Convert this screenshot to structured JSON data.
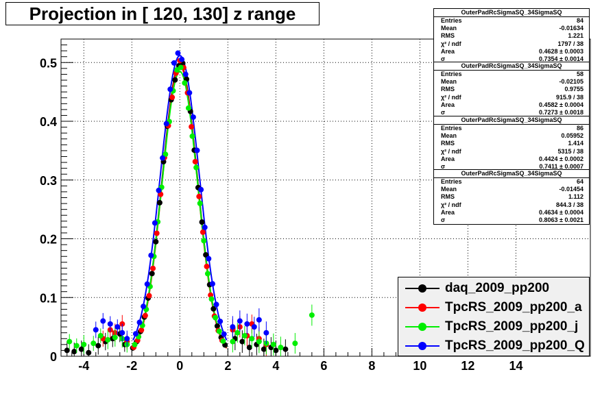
{
  "title": "Projection in [ 120, 130] z range",
  "stats": [
    {
      "name": "OuterPadRcSigmaSQ_34SigmaSQ",
      "rows": [
        {
          "k": "Entries",
          "v": "84"
        },
        {
          "k": "Mean",
          "v": "-0.01634"
        },
        {
          "k": "RMS",
          "v": "1.221"
        },
        {
          "k": "χ² / ndf",
          "v": "1797 / 38"
        },
        {
          "k": "Area",
          "v": "0.4628 ± 0.0003"
        },
        {
          "k": "σ",
          "v": "0.7354 ± 0.0014"
        }
      ]
    },
    {
      "name": "OuterPadRcSigmaSQ_34SigmaSQ",
      "rows": [
        {
          "k": "Entries",
          "v": "58"
        },
        {
          "k": "Mean",
          "v": "-0.02105"
        },
        {
          "k": "RMS",
          "v": "0.9755"
        },
        {
          "k": "χ² / ndf",
          "v": "915.9 / 38"
        },
        {
          "k": "Area",
          "v": "0.4582 ± 0.0004"
        },
        {
          "k": "σ",
          "v": "0.7273 ± 0.0018"
        }
      ]
    },
    {
      "name": "OuterPadRcSigmaSQ_34SigmaSQ",
      "rows": [
        {
          "k": "Entries",
          "v": "86"
        },
        {
          "k": "Mean",
          "v": "0.05952"
        },
        {
          "k": "RMS",
          "v": "1.414"
        },
        {
          "k": "χ² / ndf",
          "v": "5315 / 38"
        },
        {
          "k": "Area",
          "v": "0.4424 ± 0.0002"
        },
        {
          "k": "σ",
          "v": "0.7411 ± 0.0007"
        }
      ]
    },
    {
      "name": "OuterPadRcSigmaSQ_34SigmaSQ",
      "rows": [
        {
          "k": "Entries",
          "v": "64"
        },
        {
          "k": "Mean",
          "v": "-0.01454"
        },
        {
          "k": "RMS",
          "v": "1.112"
        },
        {
          "k": "χ² / ndf",
          "v": "844.3 / 38"
        },
        {
          "k": "Area",
          "v": "0.4634 ± 0.0004"
        },
        {
          "k": "σ",
          "v": "0.8063 ± 0.0021"
        }
      ]
    }
  ],
  "chart_data": {
    "type": "scatter",
    "xlim": [
      -4.95,
      17.1
    ],
    "ylim": [
      0,
      0.54
    ],
    "xticks": [
      -4,
      -2,
      0,
      2,
      4,
      6,
      8,
      10,
      12,
      14
    ],
    "yticks": [
      0,
      0.1,
      0.2,
      0.3,
      0.4,
      0.5
    ],
    "grid": true,
    "legend_position": "bottom-right",
    "series": [
      {
        "name": "daq_2009_pp200",
        "color": "#000000",
        "sigma": 0.7354,
        "peak": 0.498,
        "tail": [
          [
            -4.7,
            0.01
          ],
          [
            -4.4,
            0.008
          ],
          [
            -4.1,
            0.012
          ],
          [
            -3.8,
            0.006
          ],
          [
            -3.4,
            0.018
          ],
          [
            -3.1,
            0.025
          ],
          [
            -2.8,
            0.03
          ],
          [
            -2.5,
            0.038
          ],
          [
            -2.3,
            0.02
          ],
          [
            2.3,
            0.03
          ],
          [
            2.6,
            0.025
          ],
          [
            2.9,
            0.015
          ],
          [
            3.2,
            0.02
          ],
          [
            3.5,
            0.012
          ],
          [
            3.8,
            0.015
          ],
          [
            4.0,
            0.01
          ],
          [
            4.4,
            0.012
          ]
        ]
      },
      {
        "name": "TpcRS_2009_pp200_a",
        "color": "#ff0000",
        "sigma": 0.7273,
        "peak": 0.495,
        "tail": [
          [
            -3.2,
            0.03
          ],
          [
            -2.9,
            0.045
          ],
          [
            -2.7,
            0.04
          ],
          [
            -2.4,
            0.055
          ],
          [
            -2.2,
            0.025
          ],
          [
            2.2,
            0.045
          ],
          [
            2.5,
            0.05
          ],
          [
            2.8,
            0.035
          ],
          [
            3.0,
            0.055
          ],
          [
            3.3,
            0.03
          ],
          [
            3.6,
            0.02
          ]
        ]
      },
      {
        "name": "TpcRS_2009_pp200_j",
        "color": "#00ee00",
        "sigma": 0.7411,
        "peak": 0.485,
        "tail": [
          [
            -4.6,
            0.025
          ],
          [
            -4.3,
            0.018
          ],
          [
            -4.0,
            0.02
          ],
          [
            -3.6,
            0.022
          ],
          [
            -3.3,
            0.035
          ],
          [
            -3.0,
            0.028
          ],
          [
            -2.7,
            0.032
          ],
          [
            -2.4,
            0.03
          ],
          [
            -2.2,
            0.02
          ],
          [
            2.2,
            0.025
          ],
          [
            2.4,
            0.04
          ],
          [
            2.7,
            0.035
          ],
          [
            3.0,
            0.03
          ],
          [
            3.3,
            0.025
          ],
          [
            3.6,
            0.022
          ],
          [
            3.9,
            0.02
          ],
          [
            4.2,
            0.015
          ],
          [
            4.8,
            0.022
          ],
          [
            5.5,
            0.07
          ]
        ]
      },
      {
        "name": "TpcRS_2009_pp200_Q",
        "color": "#0000ff",
        "sigma": 0.8063,
        "peak": 0.512,
        "tail": [
          [
            -3.5,
            0.045
          ],
          [
            -3.2,
            0.06
          ],
          [
            -2.9,
            0.055
          ],
          [
            -2.6,
            0.05
          ],
          [
            -2.4,
            0.04
          ],
          [
            -2.2,
            0.03
          ],
          [
            2.2,
            0.05
          ],
          [
            2.5,
            0.06
          ],
          [
            2.8,
            0.055
          ],
          [
            3.1,
            0.05
          ],
          [
            3.3,
            0.062
          ],
          [
            3.6,
            0.04
          ]
        ]
      }
    ]
  }
}
